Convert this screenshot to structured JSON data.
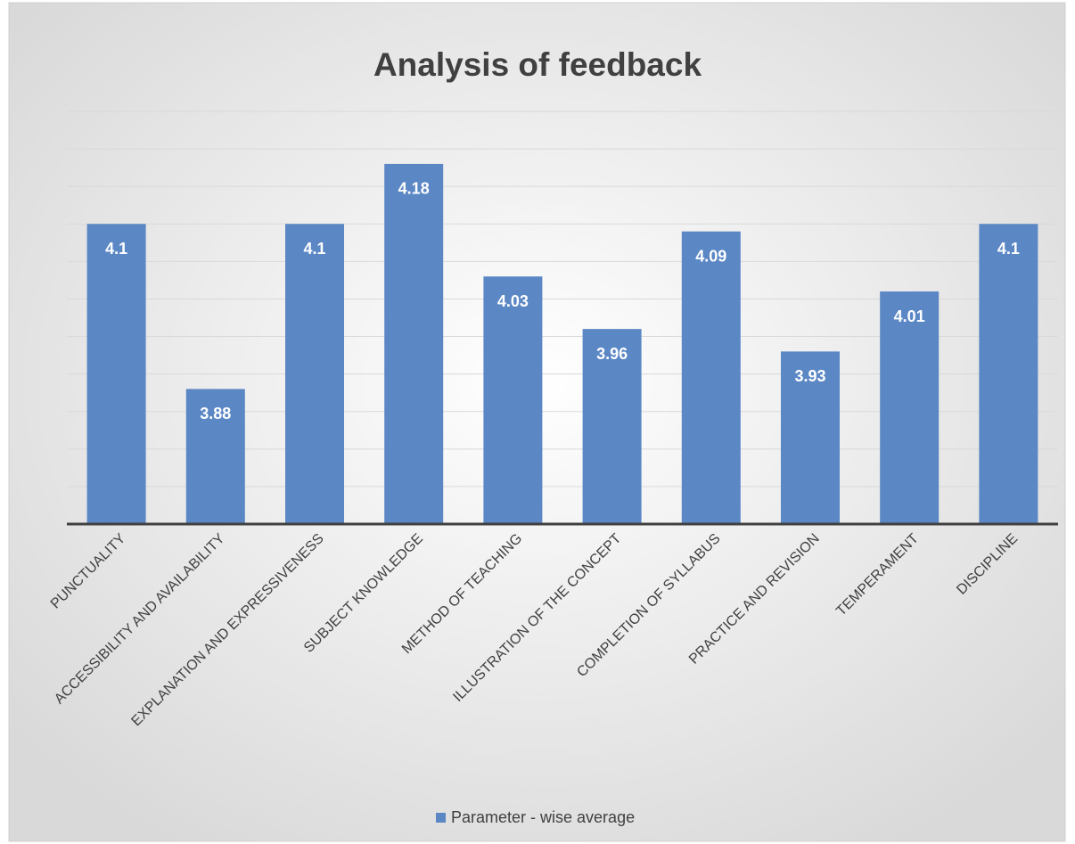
{
  "chart_data": {
    "type": "bar",
    "title": "Analysis of feedback",
    "categories": [
      "PUNCTUALITY",
      "ACCESSIBILITY AND AVAILABILITY",
      "EXPLANATION AND EXPRESSIVENESS",
      "SUBJECT KNOWLEDGE",
      "METHOD OF TEACHING",
      "ILLUSTRATION OF THE CONCEPT",
      "COMPLETION OF SYLLABUS",
      "PRACTICE AND REVISION",
      "TEMPERAMENT",
      "DISCIPLINE"
    ],
    "series": [
      {
        "name": "Parameter - wise average",
        "color": "#5b87c5",
        "values": [
          4.1,
          3.88,
          4.1,
          4.18,
          4.03,
          3.96,
          4.09,
          3.93,
          4.01,
          4.1
        ]
      }
    ],
    "ylim": [
      3.7,
      4.25
    ],
    "yticks": [
      3.7,
      3.75,
      3.8,
      3.85,
      3.9,
      3.95,
      4.0,
      4.05,
      4.1,
      4.15,
      4.2,
      4.25
    ],
    "grid": true,
    "legend": "bottom"
  }
}
